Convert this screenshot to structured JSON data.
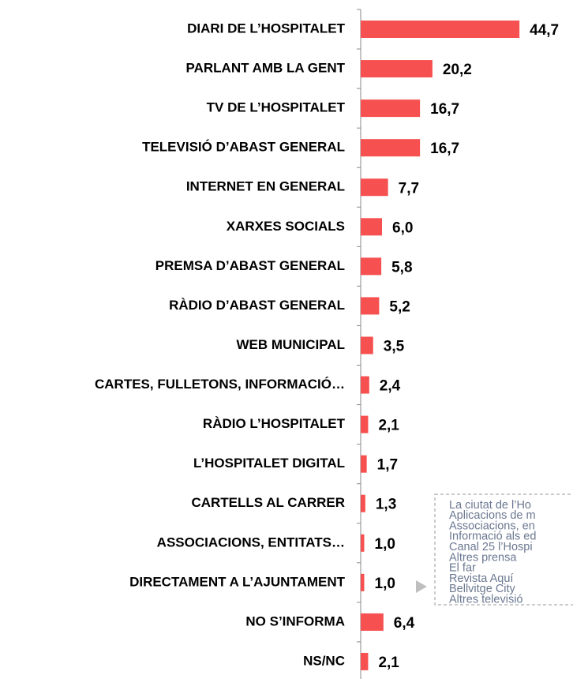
{
  "chart_data": {
    "type": "hbar",
    "categories": [
      "DIARI DE L’HOSPITALET",
      "PARLANT AMB LA GENT",
      "TV DE L’HOSPITALET",
      "TELEVISIÓ D’ABAST GENERAL",
      "INTERNET EN GENERAL",
      "XARXES SOCIALS",
      "PREMSA D’ABAST GENERAL",
      "RÀDIO D’ABAST GENERAL",
      "WEB MUNICIPAL",
      "CARTES, FULLETONS, INFORMACIÓ…",
      "RÀDIO L’HOSPITALET",
      "L’HOSPITALET DIGITAL",
      "CARTELLS AL CARRER",
      "ASSOCIACIONS, ENTITATS…",
      "DIRECTAMENT A L’AJUNTAMENT",
      "NO S’INFORMA",
      "NS/NC"
    ],
    "values": [
      44.7,
      20.2,
      16.7,
      16.7,
      7.7,
      6.0,
      5.8,
      5.2,
      3.5,
      2.4,
      2.1,
      1.7,
      1.3,
      1.0,
      1.0,
      6.4,
      2.1
    ],
    "value_labels": [
      "44,7",
      "20,2",
      "16,7",
      "16,7",
      "7,7",
      "6,0",
      "5,8",
      "5,2",
      "3,5",
      "2,4",
      "2,1",
      "1,7",
      "1,3",
      "1,0",
      "1,0",
      "6,4",
      "2,1"
    ],
    "color": "#f75050",
    "annotations": [
      "La ciutat de l’Ho",
      "Aplicacions de m",
      "Associacions, en",
      "Informació als ed",
      "Canal 25 l’Hospi",
      "Altres prensa",
      "El far",
      "Revista Aquí",
      "Bellvitge City",
      "Altres televisió"
    ]
  }
}
